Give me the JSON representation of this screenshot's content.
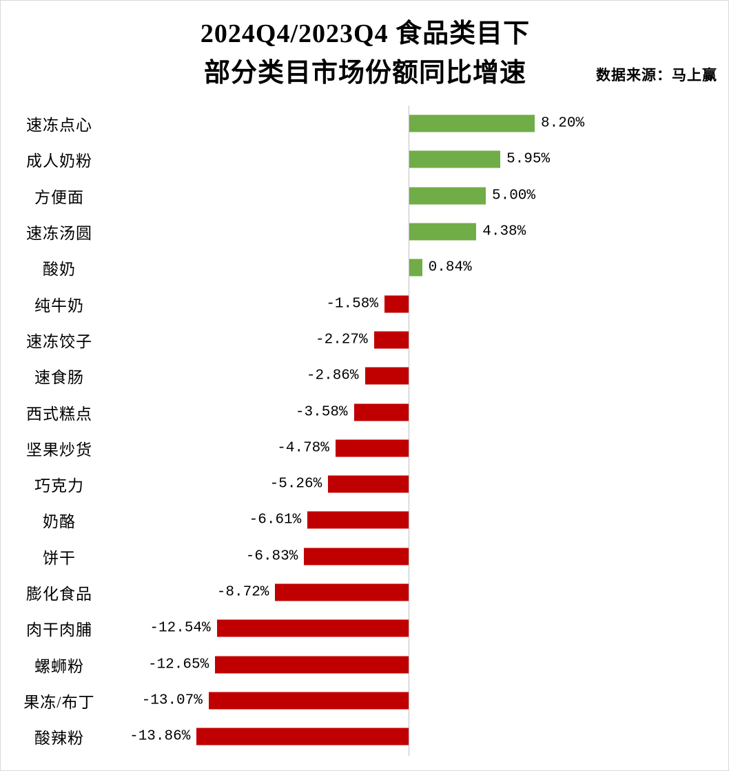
{
  "title": {
    "line1": "2024Q4/2023Q4 食品类目下",
    "line2": "部分类目市场份额同比增速"
  },
  "source": "数据来源：马上赢",
  "colors": {
    "positive": "#70AD47",
    "negative": "#C00000",
    "axis": "#BFBFBF"
  },
  "chart_data": {
    "type": "bar",
    "orientation": "horizontal",
    "title": "2024Q4/2023Q4 食品类目下 部分类目市场份额同比增速",
    "source": "数据来源：马上赢",
    "grid": false,
    "legend": false,
    "xlim": [
      -15,
      9.5
    ],
    "value_unit": "%",
    "categories": [
      "速冻点心",
      "成人奶粉",
      "方便面",
      "速冻汤圆",
      "酸奶",
      "纯牛奶",
      "速冻饺子",
      "速食肠",
      "西式糕点",
      "坚果炒货",
      "巧克力",
      "奶酪",
      "饼干",
      "膨化食品",
      "肉干肉脯",
      "螺蛳粉",
      "果冻/布丁",
      "酸辣粉"
    ],
    "values": [
      8.2,
      5.95,
      5.0,
      4.38,
      0.84,
      -1.58,
      -2.27,
      -2.86,
      -3.58,
      -4.78,
      -5.26,
      -6.61,
      -6.83,
      -8.72,
      -12.54,
      -12.65,
      -13.07,
      -13.86
    ],
    "labels": [
      "8.20%",
      "5.95%",
      "5.00%",
      "4.38%",
      "0.84%",
      "-1.58%",
      "-2.27%",
      "-2.86%",
      "-3.58%",
      "-4.78%",
      "-5.26%",
      "-6.61%",
      "-6.83%",
      "-8.72%",
      "-12.54%",
      "-12.65%",
      "-13.07%",
      "-13.86%"
    ]
  }
}
